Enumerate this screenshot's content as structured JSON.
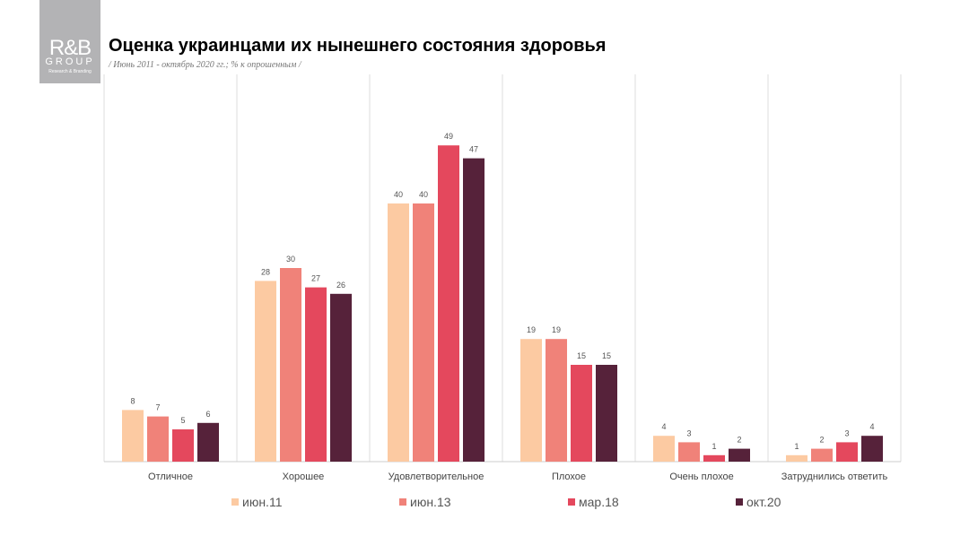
{
  "logo": {
    "line1": "R&B",
    "line2": "GROUP",
    "line3": "Research & Branding"
  },
  "title": "Оценка украинцами их нынешнего состояния здоровья",
  "subtitle": "/ Июнь 2011 - октябрь 2020 гг.; % к опрошенным /",
  "chart_data": {
    "type": "bar",
    "categories": [
      "Отличное",
      "Хорошее",
      "Удовлетворительное",
      "Плохое",
      "Очень плохое",
      "Затруднились ответить"
    ],
    "series": [
      {
        "name": "июн.11",
        "color": "#fccaa2",
        "values": [
          8,
          28,
          40,
          19,
          4,
          1
        ]
      },
      {
        "name": "июн.13",
        "color": "#f08279",
        "values": [
          7,
          30,
          40,
          19,
          3,
          2
        ]
      },
      {
        "name": "мар.18",
        "color": "#e4485d",
        "values": [
          5,
          27,
          49,
          15,
          1,
          3
        ]
      },
      {
        "name": "окт.20",
        "color": "#56223a",
        "values": [
          6,
          26,
          47,
          15,
          2,
          4
        ]
      }
    ],
    "legend": "bottom",
    "grid": false,
    "ylim": [
      0,
      55
    ]
  }
}
